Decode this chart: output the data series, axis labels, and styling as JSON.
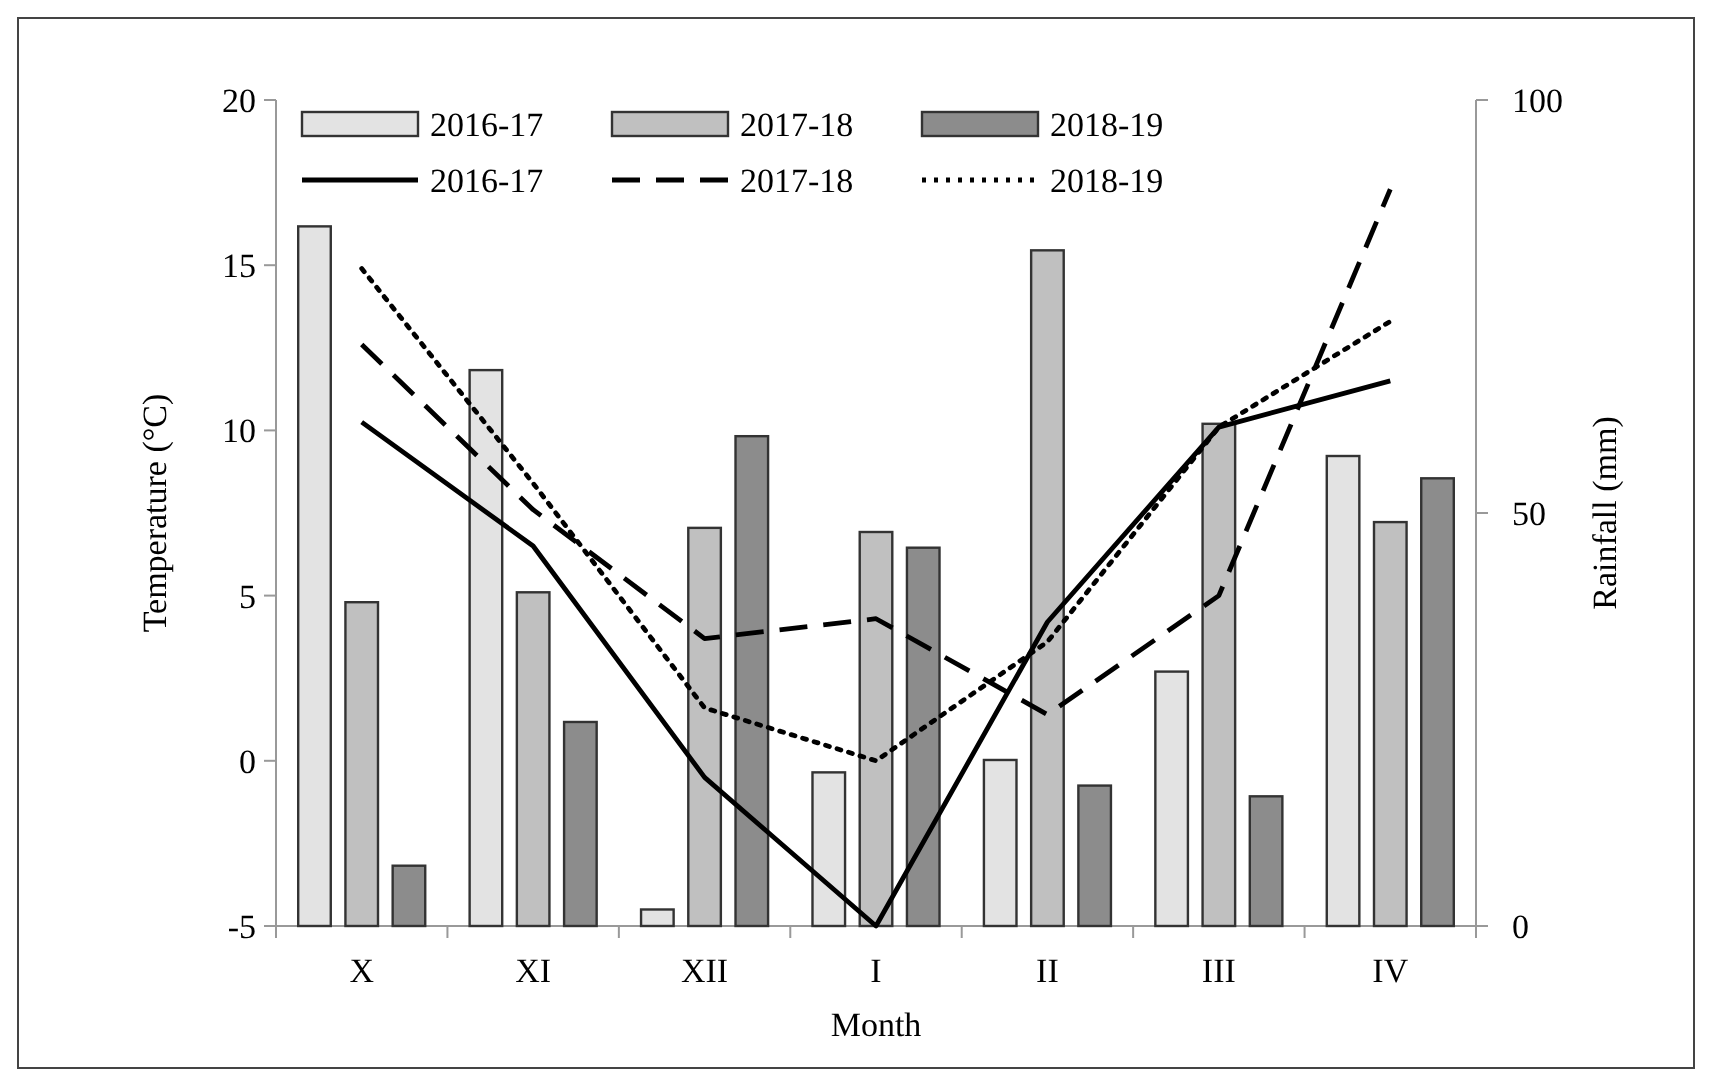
{
  "chart_data": {
    "type": "bar",
    "xlabel": "Month",
    "ylabel": "Temperature (°C)",
    "y2label": "Rainfall (mm)",
    "categories": [
      "X",
      "XI",
      "XII",
      "I",
      "II",
      "III",
      "IV"
    ],
    "ylim": [
      -5,
      20
    ],
    "yticks": [
      -5,
      0,
      5,
      10,
      15,
      20
    ],
    "y2lim": [
      0,
      100
    ],
    "y2ticks": [
      0,
      50,
      100
    ],
    "grid": false,
    "legend": "top left",
    "series": [
      {
        "name": "2016-17",
        "axis": "y2",
        "color": "#e3e3e3",
        "values": [
          84.7,
          67.3,
          2,
          18.6,
          20.1,
          30.8,
          56.9
        ]
      },
      {
        "name": "2017-18",
        "axis": "y2",
        "color": "#c0c0c0",
        "values": [
          39.2,
          40.4,
          48.2,
          47.7,
          81.8,
          60.8,
          48.9
        ]
      },
      {
        "name": "2018-19",
        "axis": "y2",
        "color": "#8c8c8c",
        "values": [
          7.3,
          24.7,
          59.3,
          45.8,
          17,
          15.7,
          54.2
        ]
      },
      {
        "name": "2016-17",
        "type": "line",
        "axis": "y",
        "color": "#000000",
        "line_style": "solid",
        "values": [
          10.25,
          6.5,
          -0.5,
          -5,
          4.2,
          10.1,
          11.5
        ]
      },
      {
        "name": "2017-18",
        "type": "line",
        "axis": "y",
        "color": "#000000",
        "line_style": "dashed",
        "values": [
          12.6,
          7.6,
          3.7,
          4.3,
          1.4,
          5,
          17.3
        ]
      },
      {
        "name": "2018-19",
        "type": "line",
        "axis": "y",
        "color": "#000000",
        "line_style": "dotted",
        "values": [
          14.9,
          8.4,
          1.6,
          0,
          3.6,
          10.1,
          13.3
        ]
      }
    ]
  }
}
